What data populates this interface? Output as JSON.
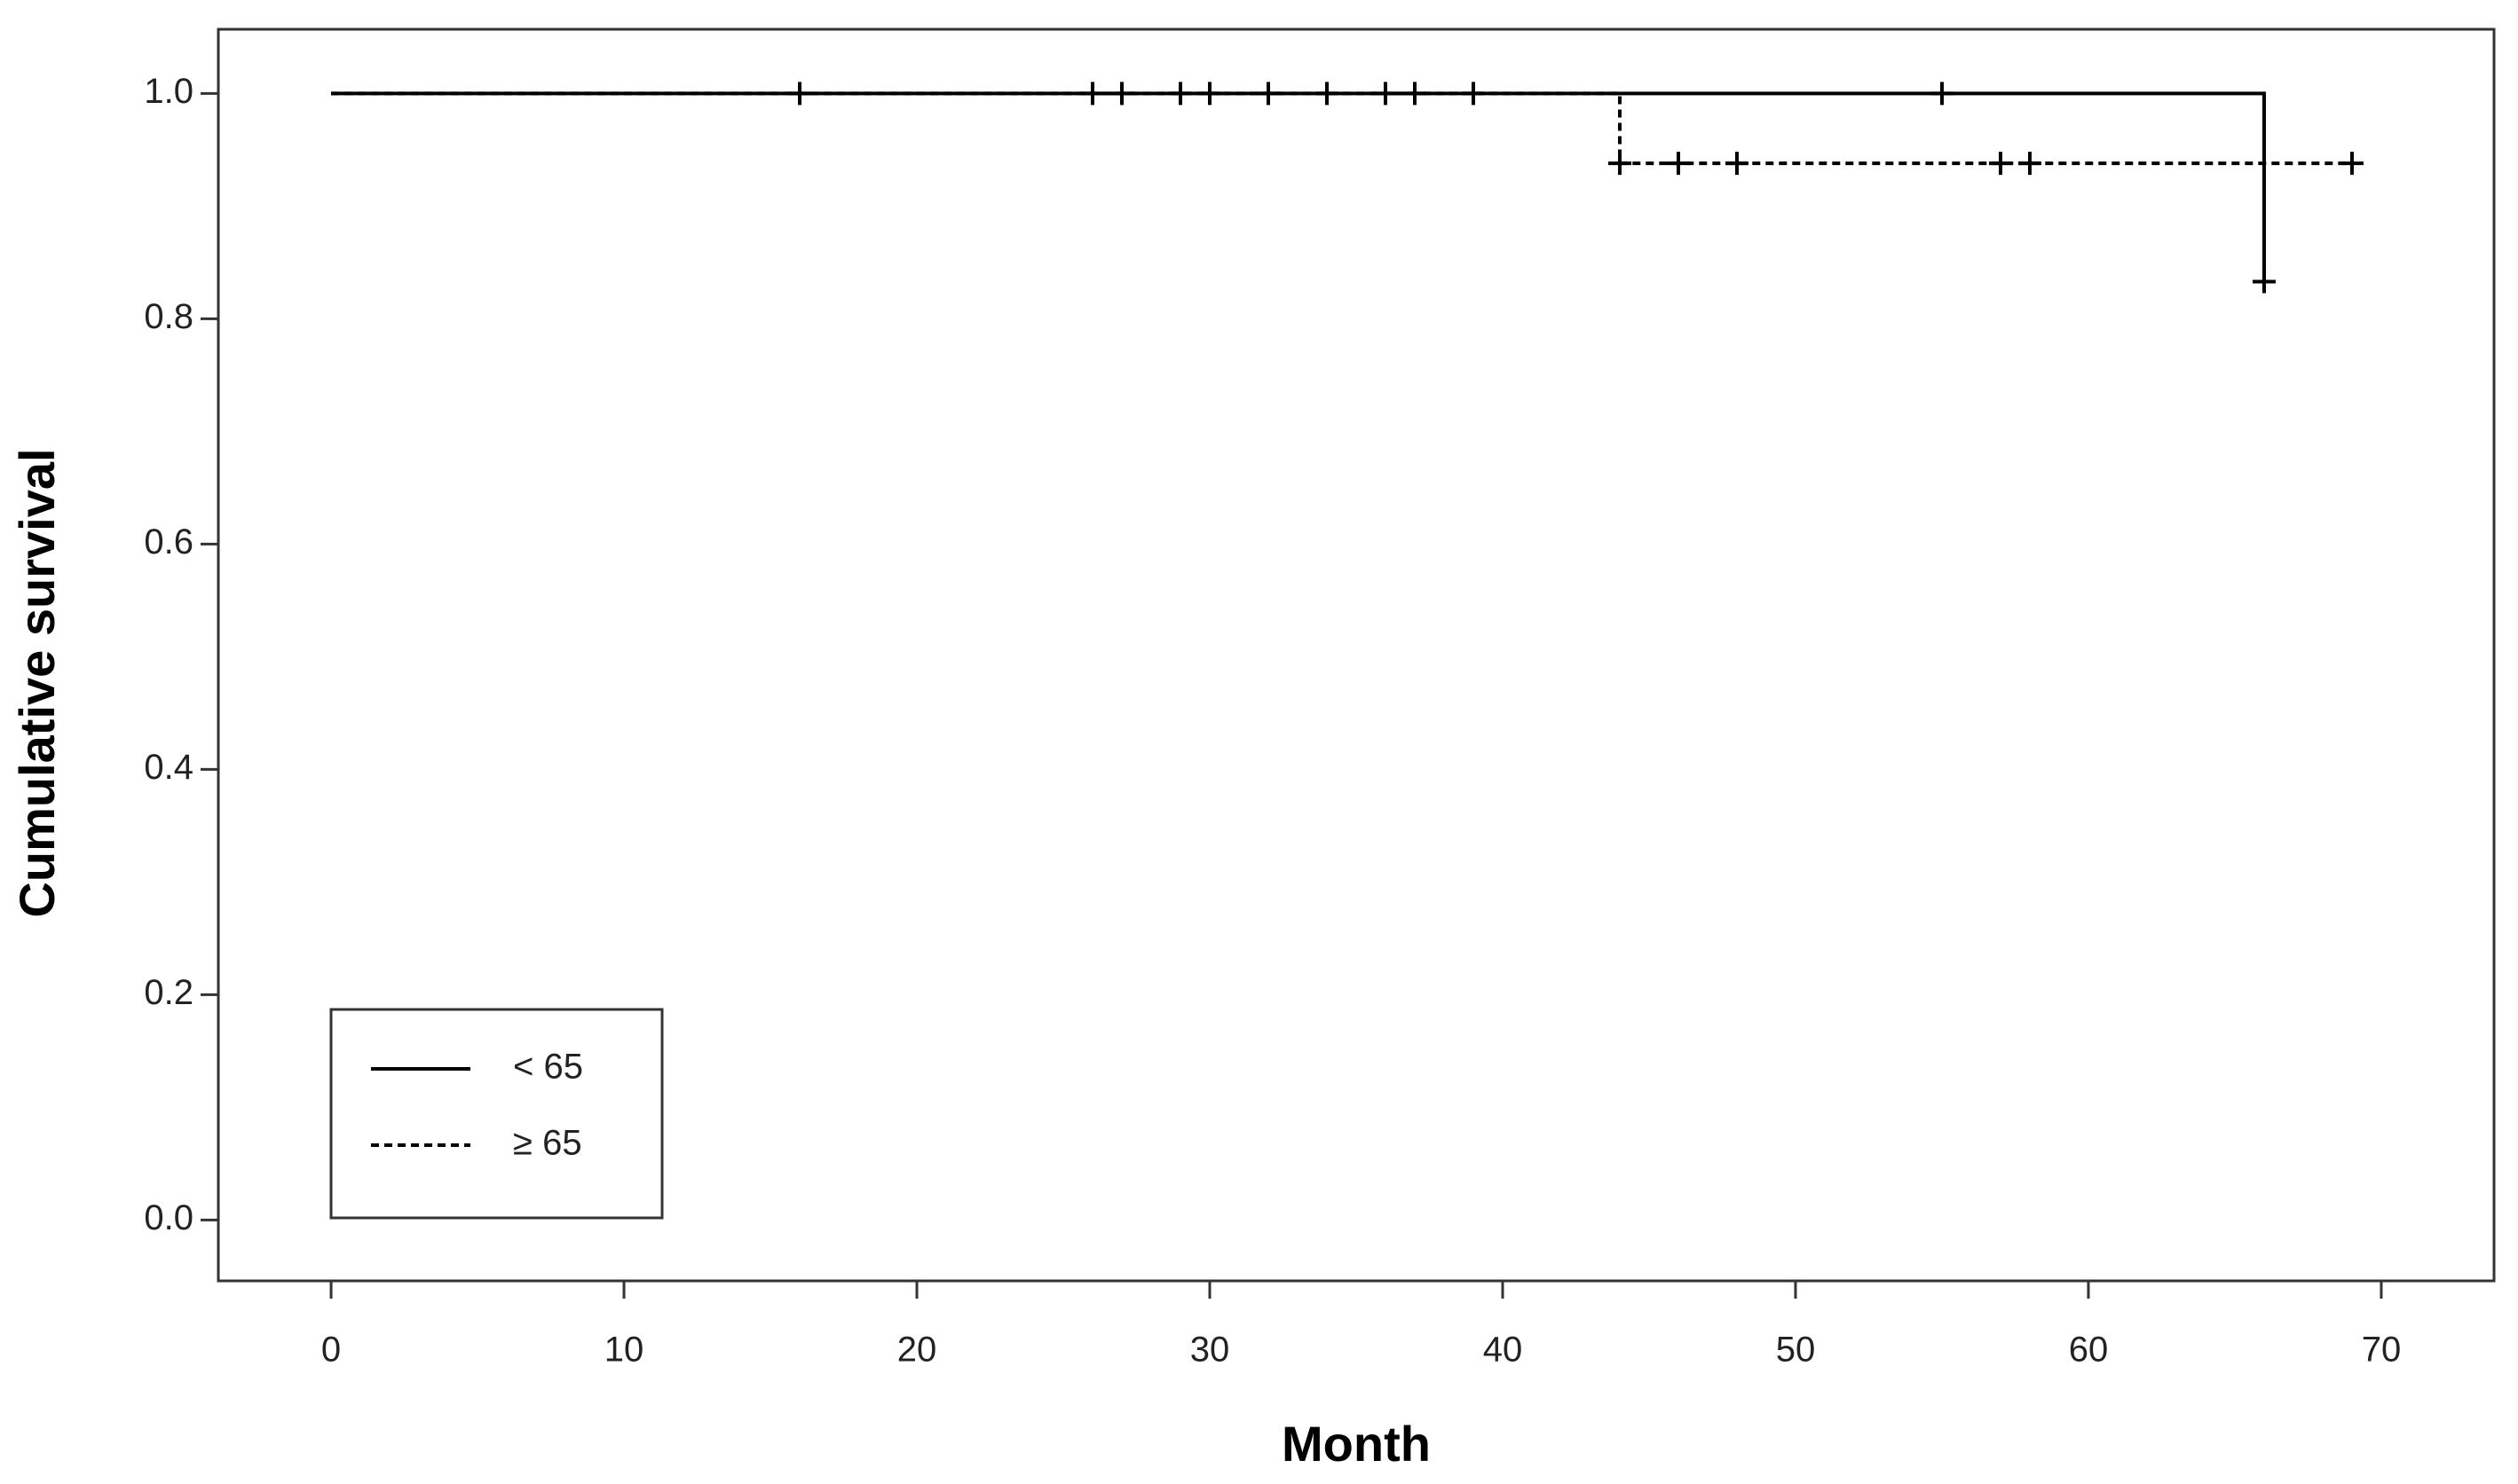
{
  "chart_data": {
    "type": "step",
    "x_label": "Month",
    "y_label": "Cumulative survival",
    "xlim": [
      -3.85,
      73.85
    ],
    "ylim": [
      -0.054,
      1.057
    ],
    "xticks": [
      0,
      10,
      20,
      30,
      40,
      50,
      60,
      70
    ],
    "yticks": [
      {
        "value": 0,
        "label": "0.0"
      },
      0.2,
      0.4,
      0.6,
      0.8,
      {
        "value": 1,
        "label": "1.0"
      }
    ],
    "legend": "lower left",
    "series": [
      {
        "name": "< 65",
        "color": "#000000",
        "line_style": "solid",
        "x": [
          0,
          66,
          66
        ],
        "values": [
          1,
          1,
          0.833
        ],
        "censored": {
          "x": [
            16,
            26,
            27,
            29,
            30,
            32,
            34,
            36,
            37,
            39,
            55,
            66
          ],
          "values": [
            1,
            1,
            1,
            1,
            1,
            1,
            1,
            1,
            1,
            1,
            1,
            0.833
          ]
        }
      },
      {
        "name": "≥ 65",
        "color": "#000000",
        "line_style": "dashed",
        "x": [
          0,
          44,
          44,
          69
        ],
        "values": [
          1,
          1,
          0.938,
          0.938
        ],
        "censored": {
          "x": [
            44,
            46,
            48,
            57,
            58,
            69
          ],
          "values": [
            0.938,
            0.938,
            0.938,
            0.938,
            0.938,
            0.938
          ]
        }
      }
    ]
  }
}
